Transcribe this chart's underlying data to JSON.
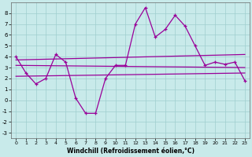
{
  "x": [
    0,
    1,
    2,
    3,
    4,
    5,
    6,
    7,
    8,
    9,
    10,
    11,
    12,
    13,
    14,
    15,
    16,
    17,
    18,
    19,
    20,
    21,
    22,
    23
  ],
  "line1": [
    4.0,
    2.5,
    1.5,
    2.0,
    4.2,
    3.5,
    0.2,
    -1.2,
    -1.2,
    2.0,
    3.2,
    3.2,
    7.0,
    8.5,
    5.8,
    6.5,
    7.8,
    6.8,
    5.0,
    3.2,
    3.5,
    3.3,
    3.5,
    1.8
  ],
  "trend1_start": 3.7,
  "trend1_end": 4.2,
  "trend2_start": 3.2,
  "trend2_end": 3.0,
  "trend3_start": 2.2,
  "trend3_end": 2.5,
  "line_color": "#990099",
  "bg_color": "#c8eaea",
  "grid_color": "#9fcece",
  "xlabel": "Windchill (Refroidissement éolien,°C)",
  "ylim": [
    -3.5,
    9.0
  ],
  "xlim": [
    -0.5,
    23.5
  ],
  "yticks": [
    -3,
    -2,
    -1,
    0,
    1,
    2,
    3,
    4,
    5,
    6,
    7,
    8
  ],
  "xticks": [
    0,
    1,
    2,
    3,
    4,
    5,
    6,
    7,
    8,
    9,
    10,
    11,
    12,
    13,
    14,
    15,
    16,
    17,
    18,
    19,
    20,
    21,
    22,
    23
  ]
}
